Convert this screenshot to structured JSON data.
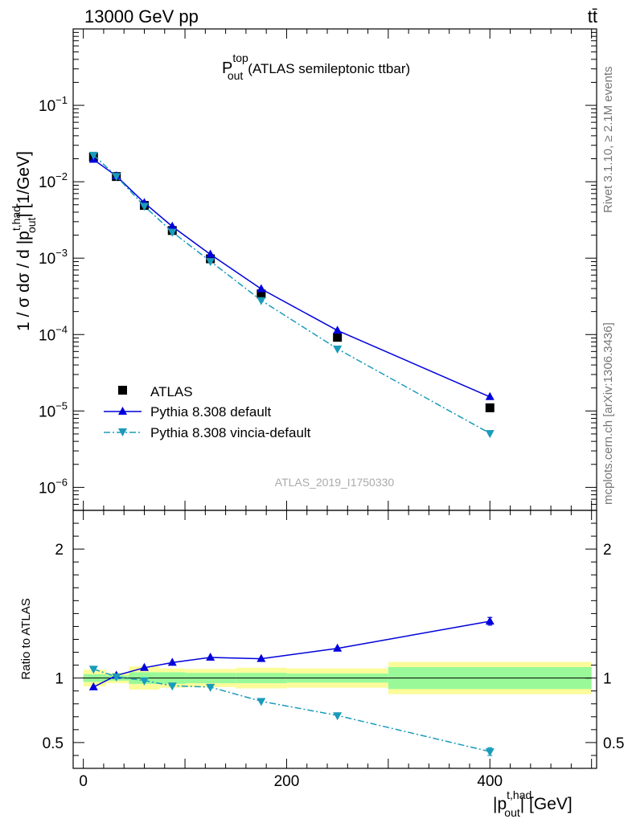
{
  "header": {
    "left": "13000 GeV pp",
    "right": "tt̄"
  },
  "side_text": {
    "rivet": "Rivet 3.1.10, ≥ 2.1M events",
    "mcplots": "mcplots.cern.ch [arXiv:1306.3436]"
  },
  "chart_data": [
    {
      "type": "line",
      "panel": "main",
      "title_main": "P",
      "title_sup": "top",
      "title_sub": "out",
      "title_suffix": "(ATLAS semileptonic ttbar)",
      "watermark": "ATLAS_2019_I1750330",
      "ylabel": "1 / σ dσ / d |p_out^t,had| [1/GeV]",
      "yscale": "log",
      "ylim": [
        5e-07,
        1.0
      ],
      "xlim": [
        -10,
        505
      ],
      "y_ticks": [
        {
          "value": 1e-06,
          "mant": "10",
          "exp": "−6"
        },
        {
          "value": 1e-05,
          "mant": "10",
          "exp": "−5"
        },
        {
          "value": 0.0001,
          "mant": "10",
          "exp": "−4"
        },
        {
          "value": 0.001,
          "mant": "10",
          "exp": "−3"
        },
        {
          "value": 0.01,
          "mant": "10",
          "exp": "−2"
        },
        {
          "value": 0.1,
          "mant": "10",
          "exp": "−1"
        }
      ],
      "legend_position": "bottom-left",
      "series": [
        {
          "name": "ATLAS",
          "style": "square",
          "color": "#000000",
          "x": [
            10,
            32.5,
            60,
            87.5,
            125,
            175,
            250,
            400
          ],
          "y": [
            0.021,
            0.0117,
            0.0049,
            0.0023,
            0.00098,
            0.00034,
            9.2e-05,
            1.1e-05
          ]
        },
        {
          "name": "Pythia 8.308 default",
          "style": "triangle-up",
          "color": "#0000dd",
          "dash": "solid",
          "x": [
            10,
            32.5,
            60,
            87.5,
            125,
            175,
            250,
            400
          ],
          "y": [
            0.0195,
            0.0119,
            0.0053,
            0.0026,
            0.00112,
            0.000395,
            0.000113,
            1.53e-05
          ]
        },
        {
          "name": "Pythia 8.308 vincia-default",
          "style": "triangle-down",
          "color": "#1a9bbb",
          "dash": "dashdot",
          "x": [
            10,
            32.5,
            60,
            87.5,
            125,
            175,
            250,
            400
          ],
          "y": [
            0.0224,
            0.0118,
            0.0048,
            0.0022,
            0.00091,
            0.00028,
            6.5e-05,
            5.1e-06
          ]
        }
      ]
    },
    {
      "type": "line",
      "panel": "ratio",
      "ylabel": "Ratio to ATLAS",
      "xlabel": "|p_out^t,had| [GeV]",
      "xlabel_main": "|p",
      "xlabel_sup": "t,had",
      "xlabel_sub": "out",
      "xlabel_suffix": "| [GeV]",
      "ylim": [
        0.3,
        2.3
      ],
      "xlim": [
        -10,
        505
      ],
      "x_ticks": [
        0,
        200,
        400
      ],
      "y_ticks": [
        0.5,
        1,
        2
      ],
      "y_tick_labels": [
        "0.5",
        "1",
        "2"
      ],
      "reference_line": 1.0,
      "bins": [
        {
          "x0": 0,
          "x1": 22.5,
          "stat": 0.03,
          "tot": 0.065
        },
        {
          "x0": 22.5,
          "x1": 45,
          "stat": 0.02,
          "tot": 0.04
        },
        {
          "x0": 45,
          "x1": 75,
          "stat": 0.045,
          "tot": 0.09
        },
        {
          "x0": 75,
          "x1": 100,
          "stat": 0.045,
          "tot": 0.075
        },
        {
          "x0": 100,
          "x1": 150,
          "stat": 0.04,
          "tot": 0.07
        },
        {
          "x0": 150,
          "x1": 200,
          "stat": 0.04,
          "tot": 0.08
        },
        {
          "x0": 200,
          "x1": 300,
          "stat": 0.035,
          "tot": 0.075
        },
        {
          "x0": 300,
          "x1": 500,
          "stat": 0.085,
          "tot": 0.125
        }
      ],
      "series": [
        {
          "name": "Pythia 8.308 default",
          "style": "triangle-up",
          "color": "#0000dd",
          "dash": "solid",
          "x": [
            10,
            32.5,
            60,
            87.5,
            125,
            175,
            250,
            400
          ],
          "y": [
            0.93,
            1.02,
            1.08,
            1.12,
            1.16,
            1.15,
            1.23,
            1.44
          ],
          "err": [
            0,
            0,
            0,
            0,
            0,
            0,
            0,
            0.03
          ]
        },
        {
          "name": "Pythia 8.308 vincia-default",
          "style": "triangle-down",
          "color": "#1a9bbb",
          "dash": "dashdot",
          "x": [
            10,
            32.5,
            60,
            87.5,
            125,
            175,
            250,
            400
          ],
          "y": [
            1.07,
            1.01,
            0.98,
            0.94,
            0.93,
            0.82,
            0.71,
            0.43
          ],
          "err": [
            0,
            0,
            0,
            0,
            0,
            0,
            0,
            0.03
          ]
        }
      ]
    }
  ]
}
